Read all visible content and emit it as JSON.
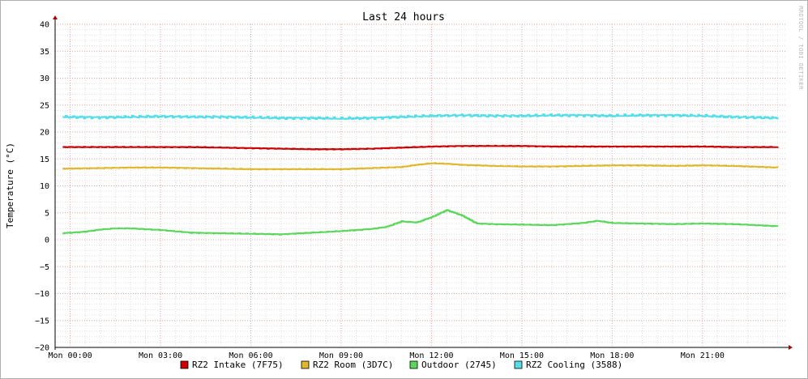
{
  "chart_data": {
    "type": "line",
    "title": "Last 24 hours",
    "ylabel": "Temperature (°C)",
    "xlabel": "",
    "watermark": "RRDTOOL / TOBI OETIKER",
    "ylim": [
      -20,
      40
    ],
    "yticks": [
      40,
      35,
      30,
      25,
      20,
      15,
      10,
      5,
      0,
      -5,
      -10,
      -15,
      -20
    ],
    "yticks_labels": [
      "40",
      "35",
      "30",
      "25",
      "20",
      "15",
      "10",
      "5",
      "0",
      "−5",
      "−10",
      "−15",
      "−20"
    ],
    "xlim": [
      -0.5,
      23.75
    ],
    "xticks": [
      0,
      3,
      6,
      9,
      12,
      15,
      18,
      21
    ],
    "xtick_labels": [
      "Mon 00:00",
      "Mon 03:00",
      "Mon 06:00",
      "Mon 09:00",
      "Mon 12:00",
      "Mon 15:00",
      "Mon 18:00",
      "Mon 21:00"
    ],
    "grid": true,
    "legend_position": "bottom",
    "series": [
      {
        "name": "RZ2 Intake (7F75)",
        "color": "#cc0000",
        "x": [
          -0.25,
          1,
          2,
          3,
          4,
          5,
          6,
          7,
          8,
          9,
          10,
          11,
          12,
          13,
          14,
          15,
          16,
          17,
          18,
          19,
          20,
          21,
          22,
          23.5
        ],
        "y": [
          17.2,
          17.2,
          17.2,
          17.2,
          17.2,
          17.1,
          17.0,
          16.9,
          16.8,
          16.8,
          16.9,
          17.1,
          17.3,
          17.4,
          17.4,
          17.4,
          17.3,
          17.3,
          17.3,
          17.3,
          17.3,
          17.3,
          17.2,
          17.2
        ]
      },
      {
        "name": "RZ2 Room (3D7C)",
        "color": "#e0b830",
        "x": [
          -0.25,
          1,
          2,
          3,
          4,
          5,
          6,
          7,
          8,
          9,
          10,
          11,
          11.5,
          12,
          12.5,
          13,
          14,
          15,
          16,
          17,
          18,
          19,
          20,
          21,
          22,
          23.5
        ],
        "y": [
          13.2,
          13.3,
          13.4,
          13.4,
          13.3,
          13.2,
          13.1,
          13.1,
          13.1,
          13.1,
          13.3,
          13.5,
          13.9,
          14.2,
          14.1,
          13.9,
          13.7,
          13.6,
          13.6,
          13.7,
          13.8,
          13.8,
          13.7,
          13.8,
          13.7,
          13.4
        ]
      },
      {
        "name": "Outdoor (2745)",
        "color": "#5cd65c",
        "x": [
          -0.25,
          0.5,
          1,
          1.5,
          2,
          3,
          4,
          5,
          6,
          7,
          8,
          9,
          10,
          10.5,
          11,
          11.5,
          12,
          12.5,
          13,
          13.5,
          14,
          15,
          16,
          17,
          17.5,
          18,
          19,
          20,
          21,
          22,
          23.5
        ],
        "y": [
          1.2,
          1.5,
          1.9,
          2.1,
          2.1,
          1.8,
          1.3,
          1.2,
          1.1,
          1.0,
          1.3,
          1.6,
          2.0,
          2.4,
          3.4,
          3.2,
          4.2,
          5.5,
          4.5,
          3.0,
          2.9,
          2.8,
          2.7,
          3.1,
          3.5,
          3.1,
          3.0,
          2.9,
          3.0,
          2.9,
          2.5
        ]
      },
      {
        "name": "RZ2 Cooling (3588)",
        "color": "#55dde8",
        "x": [
          -0.25,
          1,
          2,
          3,
          4,
          5,
          6,
          7,
          8,
          9,
          10,
          11,
          12,
          13,
          14,
          15,
          16,
          17,
          18,
          19,
          20,
          21,
          22,
          23.5
        ],
        "y": [
          22.8,
          22.7,
          22.8,
          22.9,
          22.8,
          22.8,
          22.7,
          22.6,
          22.6,
          22.5,
          22.6,
          22.8,
          23.0,
          23.1,
          23.0,
          23.0,
          23.1,
          23.1,
          23.0,
          23.1,
          23.1,
          23.0,
          22.8,
          22.6
        ]
      }
    ]
  }
}
